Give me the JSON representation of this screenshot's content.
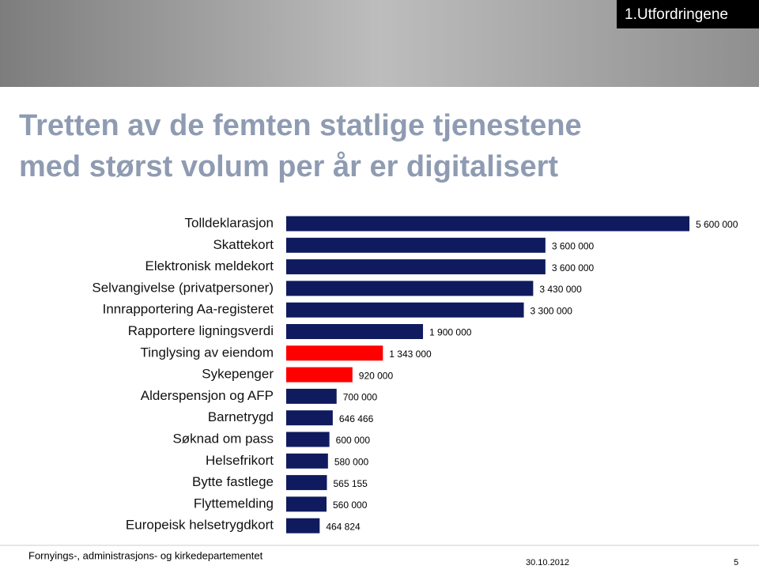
{
  "header": {
    "tab": "1.Utfordringene"
  },
  "chart_data": {
    "type": "hbar",
    "title": [
      "Tretten av de femten statlige tjenestene",
      "med størst volum per år er digitalisert"
    ],
    "categories": [
      "Tolldeklarasjon",
      "Skattekort",
      "Elektronisk meldekort",
      "Selvangivelse (privatpersoner)",
      "Innrapportering Aa-registeret",
      "Rapportere ligningsverdi",
      "Tinglysing av eiendom",
      "Sykepenger",
      "Alderspensjon og AFP",
      "Barnetrygd",
      "Søknad om pass",
      "Helsefrikort",
      "Bytte fastlege",
      "Flyttemelding",
      "Europeisk helsetrygdkort"
    ],
    "values": [
      5600000,
      3600000,
      3600000,
      3430000,
      3300000,
      1900000,
      1343000,
      920000,
      700000,
      646466,
      600000,
      580000,
      565155,
      560000,
      464824
    ],
    "value_labels": [
      "5 600 000",
      "3 600 000",
      "3 600 000",
      "3 430 000",
      "3 300 000",
      "1 900 000",
      "1 343 000",
      "920 000",
      "700 000",
      "646 466",
      "600 000",
      "580 000",
      "565 155",
      "560 000",
      "464 824"
    ],
    "colors": [
      "#0f1b5e",
      "#0f1b5e",
      "#0f1b5e",
      "#0f1b5e",
      "#0f1b5e",
      "#0f1b5e",
      "#ff0000",
      "#ff0000",
      "#0f1b5e",
      "#0f1b5e",
      "#0f1b5e",
      "#0f1b5e",
      "#0f1b5e",
      "#0f1b5e",
      "#0f1b5e"
    ]
  },
  "footer": {
    "department": "Fornyings-, administrasjons- og kirkedepartementet",
    "date": "30.10.2012",
    "page": "5"
  }
}
